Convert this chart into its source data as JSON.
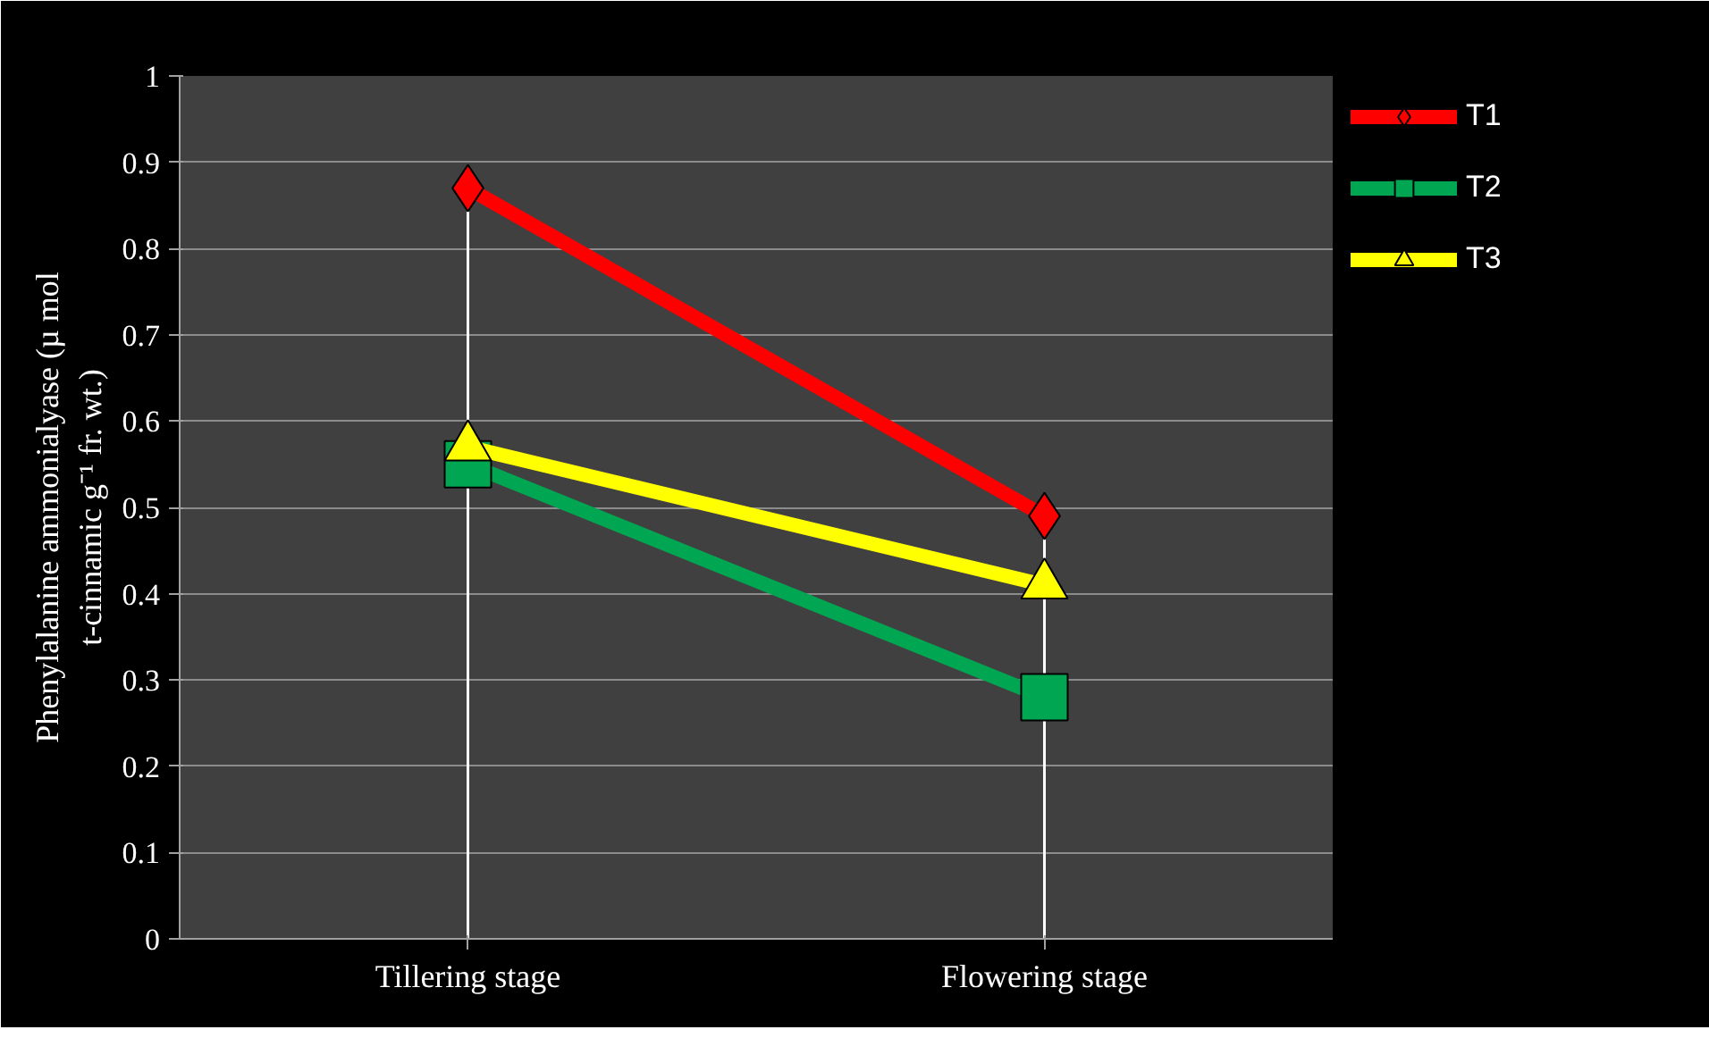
{
  "chart_data": {
    "type": "line",
    "categories": [
      "Tillering stage",
      "Flowering stage"
    ],
    "ylabel": "Phenylalanine ammonialyase (µ mol t-cinnamic g⁻¹ fr. wt.)",
    "ylim": [
      0,
      1
    ],
    "yticks": [
      0,
      0.1,
      0.2,
      0.3,
      0.4,
      0.5,
      0.6,
      0.7,
      0.8,
      0.9,
      1
    ],
    "grid": "y",
    "legend": "top right",
    "series": [
      {
        "name": "T1",
        "color": "#ff0000",
        "marker": "diamond",
        "values": [
          0.87,
          0.49
        ],
        "errors": [
          [
            0,
            0.87
          ],
          [
            0,
            0.49
          ]
        ]
      },
      {
        "name": "T2",
        "color": "#00a651",
        "marker": "square",
        "values": [
          0.55,
          0.28
        ]
      },
      {
        "name": "T3",
        "color": "#ffff00",
        "marker": "triangle",
        "values": [
          0.57,
          0.41
        ]
      }
    ]
  }
}
